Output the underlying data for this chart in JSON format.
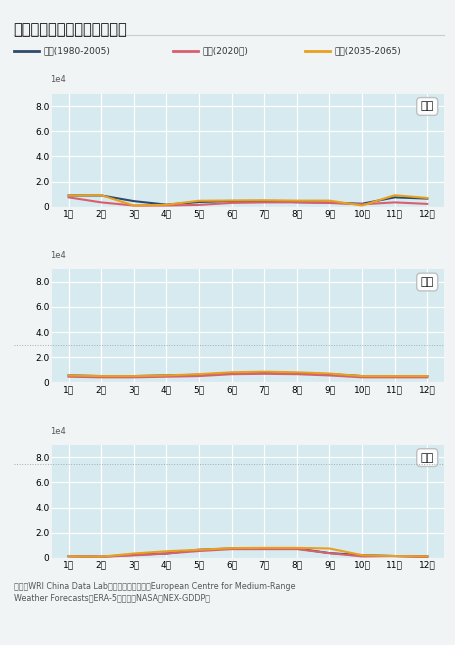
{
  "title": "三省月度降水量极大值趋势图",
  "legend": {
    "past": "过去(1980-2005)",
    "present": "现在(2020年)",
    "future": "未来(2035-2065)"
  },
  "colors": {
    "past": "#2d4a6b",
    "present": "#d95f6e",
    "future": "#e8a020"
  },
  "months": [
    "1月",
    "2月",
    "3月",
    "4月",
    "5月",
    "6月",
    "7月",
    "8月",
    "9月",
    "10月",
    "11月",
    "12月"
  ],
  "provinces": [
    "云南",
    "四川",
    "西藏"
  ],
  "yunnan": {
    "past": [
      9000,
      9000,
      4500,
      1700,
      3800,
      4600,
      4600,
      3700,
      3300,
      2400,
      7500,
      6500
    ],
    "present": [
      7500,
      3500,
      1000,
      1000,
      1500,
      3100,
      3500,
      3550,
      3000,
      2000,
      3500,
      2300
    ],
    "future": [
      9000,
      9200,
      1000,
      1600,
      4800,
      5000,
      5200,
      4900,
      4900,
      1000,
      9200,
      7000
    ]
  },
  "sichuan": {
    "past": [
      5500,
      5000,
      5000,
      5500,
      6000,
      7500,
      7500,
      7000,
      6500,
      5000,
      5000,
      5000
    ],
    "present": [
      4500,
      4000,
      4000,
      4500,
      5000,
      6500,
      6800,
      6500,
      5500,
      4000,
      4000,
      4000
    ],
    "future": [
      5500,
      5000,
      5000,
      5500,
      6500,
      8000,
      8500,
      8000,
      7000,
      5000,
      5000,
      5000
    ]
  },
  "xizang": {
    "past": [
      1400,
      1000,
      2500,
      3500,
      6500,
      7500,
      7500,
      7500,
      3800,
      2200,
      1500,
      1300
    ],
    "present": [
      1200,
      900,
      2000,
      3500,
      5500,
      7000,
      7000,
      7000,
      3800,
      1200,
      1500,
      500
    ],
    "future": [
      1400,
      1000,
      3500,
      5300,
      6500,
      7800,
      8000,
      8000,
      7500,
      2200,
      1500,
      1300
    ]
  },
  "source": "来源：WRI China Data Lab分析，原始数据来自European Centre for Medium-Range\nWeather Forecasts的ERA-5还有来自NASA的NEX-GDDP。",
  "bg_color": "#f0f4f5",
  "plot_bg_color": "#d6eaf0",
  "grid_color": "#ffffff",
  "ylim": [
    0,
    90000
  ],
  "yticks": [
    0,
    20000,
    40000,
    60000,
    80000
  ],
  "ytick_labels": [
    "0",
    "2.0",
    "4.0",
    "6.0",
    "8.0"
  ]
}
